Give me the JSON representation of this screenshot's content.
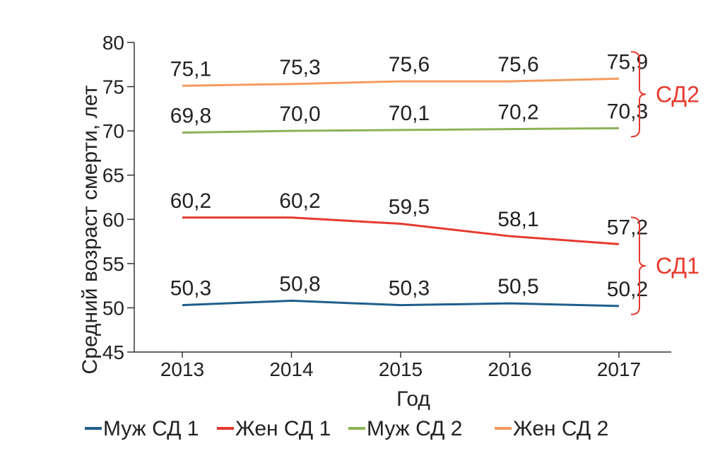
{
  "chart_data": {
    "type": "line",
    "xlabel": "Год",
    "ylabel": "Средний возраст смерти, лет",
    "ylim": [
      45,
      80
    ],
    "yticks": [
      45,
      50,
      55,
      60,
      65,
      70,
      75,
      80
    ],
    "categories": [
      "2013",
      "2014",
      "2015",
      "2016",
      "2017"
    ],
    "grid": false,
    "legend_position": "bottom",
    "series": [
      {
        "name": "Муж СД 1",
        "color": "#1f5f8b",
        "values": [
          50.3,
          50.8,
          50.3,
          50.5,
          50.2
        ],
        "labels": [
          "50,3",
          "50,8",
          "50,3",
          "50,5",
          "50,2"
        ]
      },
      {
        "name": "Жен СД 1",
        "color": "#e63a2e",
        "values": [
          60.2,
          60.2,
          59.5,
          58.1,
          57.2
        ],
        "labels": [
          "60,2",
          "60,2",
          "59,5",
          "58,1",
          "57,2"
        ]
      },
      {
        "name": "Муж СД 2",
        "color": "#8db255",
        "values": [
          69.8,
          70.0,
          70.1,
          70.2,
          70.3
        ],
        "labels": [
          "69,8",
          "70,0",
          "70,1",
          "70,2",
          "70,3"
        ]
      },
      {
        "name": "Жен СД 2",
        "color": "#f39b5e",
        "values": [
          75.1,
          75.3,
          75.6,
          75.6,
          75.9
        ],
        "labels": [
          "75,1",
          "75,3",
          "75,6",
          "75,6",
          "75,9"
        ]
      }
    ],
    "groups": [
      {
        "label": "СД1",
        "range": [
          50.2,
          57.2
        ],
        "color": "#e63a2e"
      },
      {
        "label": "СД2",
        "range": [
          70.3,
          75.9
        ],
        "color": "#e63a2e"
      }
    ]
  }
}
